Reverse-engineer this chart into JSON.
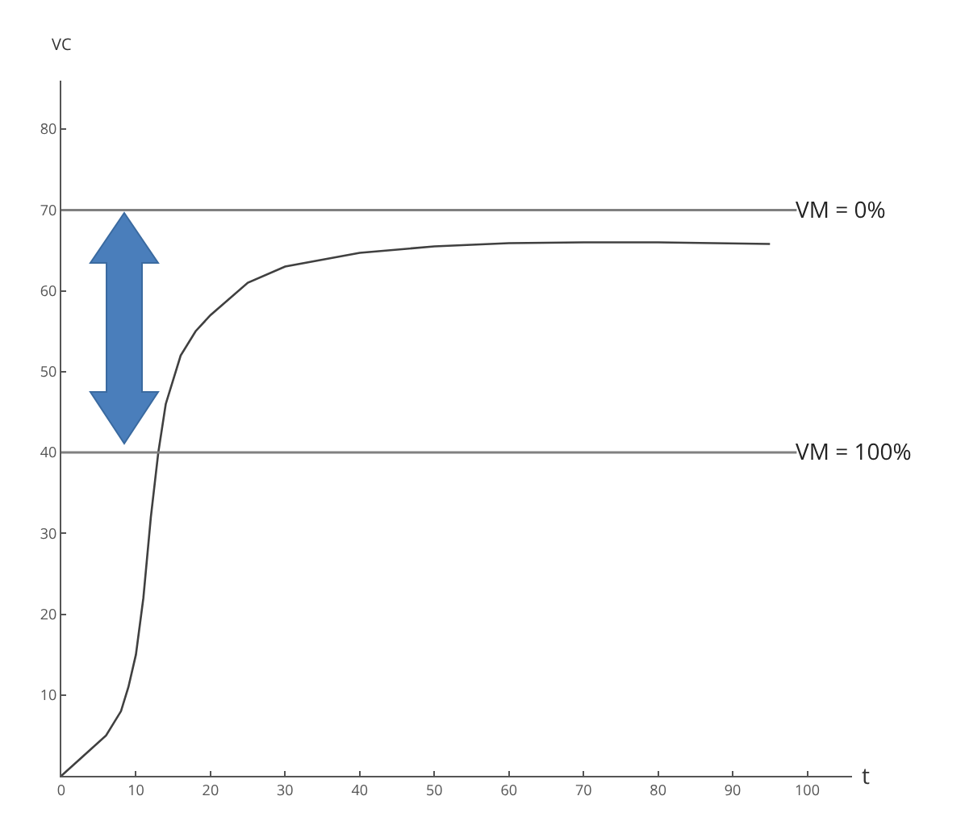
{
  "chart_data": {
    "type": "line",
    "xlabel": "t",
    "ylabel": "VC",
    "x": [
      0,
      3,
      6,
      8,
      9,
      10,
      11,
      12,
      13,
      14,
      16,
      18,
      20,
      25,
      30,
      40,
      50,
      60,
      70,
      80,
      95
    ],
    "series": [
      {
        "color": "#404040",
        "values": [
          0,
          2.5,
          5,
          8,
          11,
          15,
          22,
          32,
          40,
          46,
          52,
          55,
          57,
          61,
          63,
          64.7,
          65.5,
          65.9,
          66,
          66,
          65.8
        ]
      }
    ],
    "xlim": [
      0,
      106
    ],
    "ylim": [
      0,
      86
    ],
    "xticks": [
      0,
      10,
      20,
      30,
      40,
      50,
      60,
      70,
      80,
      90,
      100
    ],
    "yticks": [
      10,
      20,
      30,
      40,
      50,
      60,
      70,
      80
    ],
    "ref_lines": [
      {
        "axis": "y",
        "value": 70,
        "color": "#808080"
      },
      {
        "axis": "y",
        "value": 40,
        "color": "#808080"
      }
    ],
    "annotations": [
      {
        "text": "VM = 0%",
        "x": 98,
        "y": 70
      },
      {
        "text": "VM = 100%",
        "x": 98,
        "y": 40
      }
    ],
    "grid": false,
    "marker": "none",
    "line_style": "solid"
  }
}
